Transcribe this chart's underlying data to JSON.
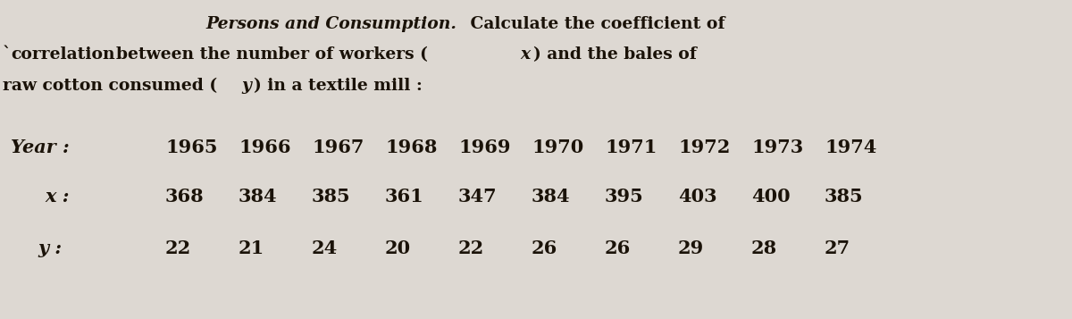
{
  "bg_color": "#ddd8d2",
  "text_color": "#1a1208",
  "title_italic": "Persons and Consumption.",
  "title_bold": " Calculate the coefficient of",
  "line2a": "`correlation ",
  "line2b": "between the number of workers (",
  "line2_x": "x",
  "line2_end": ") and the bales of",
  "line3a": "raw cotton consumed (",
  "line3_y": "y",
  "line3_end": ") in a textile mill :",
  "years": [
    "1965",
    "1966",
    "1967",
    "1968",
    "1969",
    "1970",
    "1971",
    "1972",
    "1973",
    "1974"
  ],
  "x_values": [
    "368",
    "384",
    "385",
    "361",
    "347",
    "384",
    "395",
    "403",
    "400",
    "385"
  ],
  "y_values": [
    "22",
    "21",
    "24",
    "20",
    "22",
    "26",
    "26",
    "29",
    "28",
    "27"
  ],
  "label_year": "Year :",
  "label_x": "x :",
  "label_y": "y :",
  "fs_header": 13.5,
  "fs_data": 15.0
}
